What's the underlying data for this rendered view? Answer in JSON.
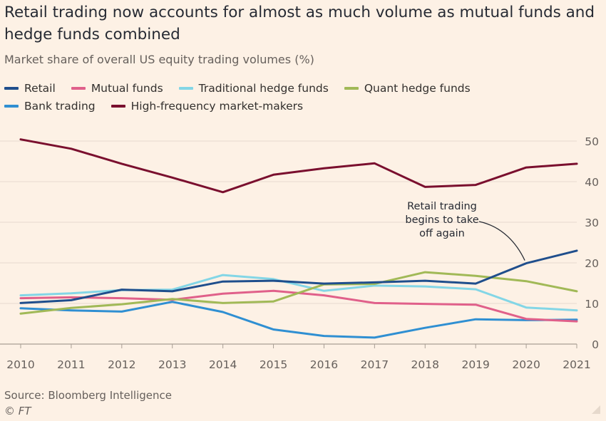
{
  "title": "Retail trading now accounts for almost as much volume as mutual funds and hedge funds combined",
  "subtitle": "Market share of overall US equity trading volumes (%)",
  "source": "Source: Bloomberg Intelligence",
  "copyright": "© FT",
  "legend_rows": [
    [
      0,
      1,
      2,
      3
    ],
    [
      4,
      5
    ]
  ],
  "chart_data": {
    "type": "line",
    "x": [
      2010,
      2011,
      2012,
      2013,
      2014,
      2015,
      2016,
      2017,
      2018,
      2019,
      2020,
      2021
    ],
    "ylim": [
      0,
      50
    ],
    "yticks": [
      0,
      10,
      20,
      30,
      40,
      50
    ],
    "grid": true,
    "legend_position": "top-left",
    "series": [
      {
        "name": "Retail",
        "color": "#1f4e8c",
        "values": [
          10.1,
          10.8,
          13.4,
          13.0,
          15.4,
          15.6,
          14.9,
          15.2,
          15.6,
          14.9,
          19.9,
          23.0
        ]
      },
      {
        "name": "Mutual funds",
        "color": "#e0608a",
        "values": [
          11.3,
          11.5,
          11.3,
          10.9,
          12.4,
          13.1,
          12.0,
          10.1,
          9.9,
          9.7,
          6.2,
          5.6
        ]
      },
      {
        "name": "Traditional hedge funds",
        "color": "#83d6e6",
        "values": [
          12.0,
          12.5,
          13.3,
          13.4,
          17.0,
          16.0,
          13.1,
          14.4,
          14.2,
          13.5,
          9.0,
          8.3
        ]
      },
      {
        "name": "Quant hedge funds",
        "color": "#a1b957",
        "values": [
          7.5,
          8.9,
          9.8,
          11.1,
          10.1,
          10.5,
          14.7,
          14.8,
          17.7,
          16.8,
          15.5,
          13.0
        ]
      },
      {
        "name": "Bank trading",
        "color": "#2f8fd2",
        "values": [
          8.8,
          8.3,
          8.0,
          10.4,
          7.9,
          3.6,
          2.0,
          1.6,
          4.0,
          6.1,
          5.9,
          6.0
        ]
      },
      {
        "name": "High-frequency market-makers",
        "color": "#7a0f2e",
        "values": [
          50.4,
          48.1,
          44.4,
          41.0,
          37.4,
          41.7,
          43.3,
          44.5,
          38.7,
          39.2,
          43.5,
          44.4
        ]
      }
    ],
    "annotations": [
      {
        "text": [
          "Retail trading",
          "begins to take",
          "off again"
        ],
        "x": 2020,
        "y": 19.9,
        "series": "Retail"
      }
    ]
  }
}
